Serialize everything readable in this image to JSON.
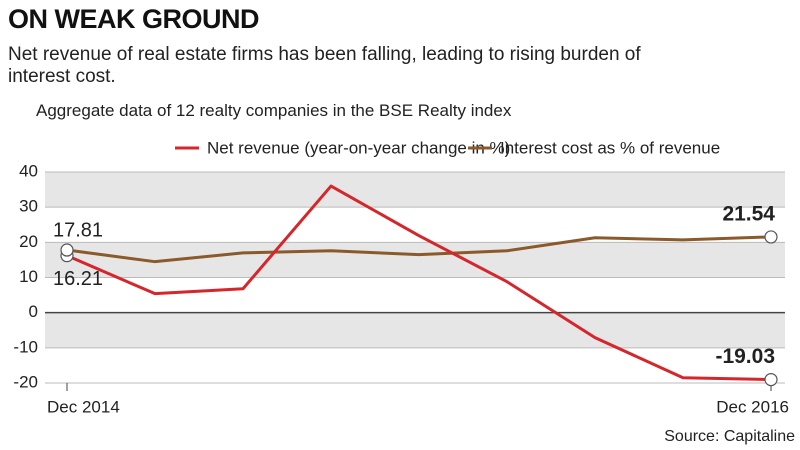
{
  "chart_data": {
    "type": "line",
    "title": "ON WEAK GROUND",
    "subtitle": "Net revenue of real estate firms has been falling, leading to rising burden of interest cost.",
    "note": "Aggregate data of 12 realty companies in the BSE Realty index",
    "source": "Source: Capitaline",
    "categories": [
      "Dec 2014",
      null,
      null,
      null,
      null,
      null,
      null,
      null,
      "Dec 2016"
    ],
    "series": [
      {
        "name": "Net revenue (year-on-year change in %)",
        "color": "#d6262b",
        "values": [
          16.21,
          5.4,
          6.8,
          36,
          21.9,
          8.8,
          -7.1,
          -18.5,
          -19.03
        ]
      },
      {
        "name": "Interest cost as % of revenue",
        "color": "#8b5a2b",
        "values": [
          17.81,
          14.5,
          17,
          17.6,
          16.5,
          17.6,
          21.3,
          20.7,
          21.54
        ]
      }
    ],
    "ylim": [
      -20,
      40
    ],
    "yticks": [
      -20,
      -10,
      0,
      10,
      20,
      30,
      40
    ],
    "grid": true,
    "legend": "top"
  }
}
